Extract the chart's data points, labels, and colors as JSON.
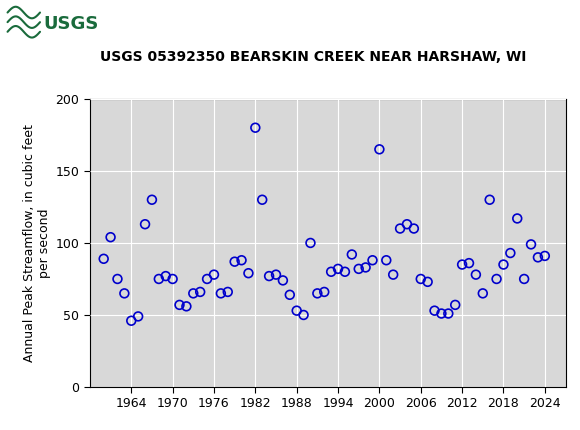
{
  "title": "USGS 05392350 BEARSKIN CREEK NEAR HARSHAW, WI",
  "ylabel": "Annual Peak Streamflow, in cubic feet\nper second",
  "xlim": [
    1958,
    2027
  ],
  "ylim": [
    0,
    200
  ],
  "yticks": [
    0,
    50,
    100,
    150,
    200
  ],
  "xticks": [
    1964,
    1970,
    1976,
    1982,
    1988,
    1994,
    2000,
    2006,
    2012,
    2018,
    2024
  ],
  "marker_color": "#0000cc",
  "background_color": "#ffffff",
  "plot_bg_color": "#d8d8d8",
  "header_color": "#1a6b3c",
  "logo_bg": "#ffffff",
  "data": [
    [
      1960,
      89
    ],
    [
      1961,
      104
    ],
    [
      1962,
      75
    ],
    [
      1963,
      65
    ],
    [
      1964,
      46
    ],
    [
      1965,
      49
    ],
    [
      1966,
      113
    ],
    [
      1967,
      130
    ],
    [
      1968,
      75
    ],
    [
      1969,
      77
    ],
    [
      1970,
      75
    ],
    [
      1971,
      57
    ],
    [
      1972,
      56
    ],
    [
      1973,
      65
    ],
    [
      1974,
      66
    ],
    [
      1975,
      75
    ],
    [
      1976,
      78
    ],
    [
      1977,
      65
    ],
    [
      1978,
      66
    ],
    [
      1979,
      87
    ],
    [
      1980,
      88
    ],
    [
      1981,
      79
    ],
    [
      1982,
      180
    ],
    [
      1983,
      130
    ],
    [
      1984,
      77
    ],
    [
      1985,
      78
    ],
    [
      1986,
      74
    ],
    [
      1987,
      64
    ],
    [
      1988,
      53
    ],
    [
      1989,
      50
    ],
    [
      1990,
      100
    ],
    [
      1991,
      65
    ],
    [
      1992,
      66
    ],
    [
      1993,
      80
    ],
    [
      1994,
      82
    ],
    [
      1995,
      80
    ],
    [
      1996,
      92
    ],
    [
      1997,
      82
    ],
    [
      1998,
      83
    ],
    [
      1999,
      88
    ],
    [
      2000,
      165
    ],
    [
      2001,
      88
    ],
    [
      2002,
      78
    ],
    [
      2003,
      110
    ],
    [
      2004,
      113
    ],
    [
      2005,
      110
    ],
    [
      2006,
      75
    ],
    [
      2007,
      73
    ],
    [
      2008,
      53
    ],
    [
      2009,
      51
    ],
    [
      2010,
      51
    ],
    [
      2011,
      57
    ],
    [
      2012,
      85
    ],
    [
      2013,
      86
    ],
    [
      2014,
      78
    ],
    [
      2015,
      65
    ],
    [
      2016,
      130
    ],
    [
      2017,
      75
    ],
    [
      2018,
      85
    ],
    [
      2019,
      93
    ],
    [
      2020,
      117
    ],
    [
      2021,
      75
    ],
    [
      2022,
      99
    ],
    [
      2023,
      90
    ],
    [
      2024,
      91
    ]
  ]
}
